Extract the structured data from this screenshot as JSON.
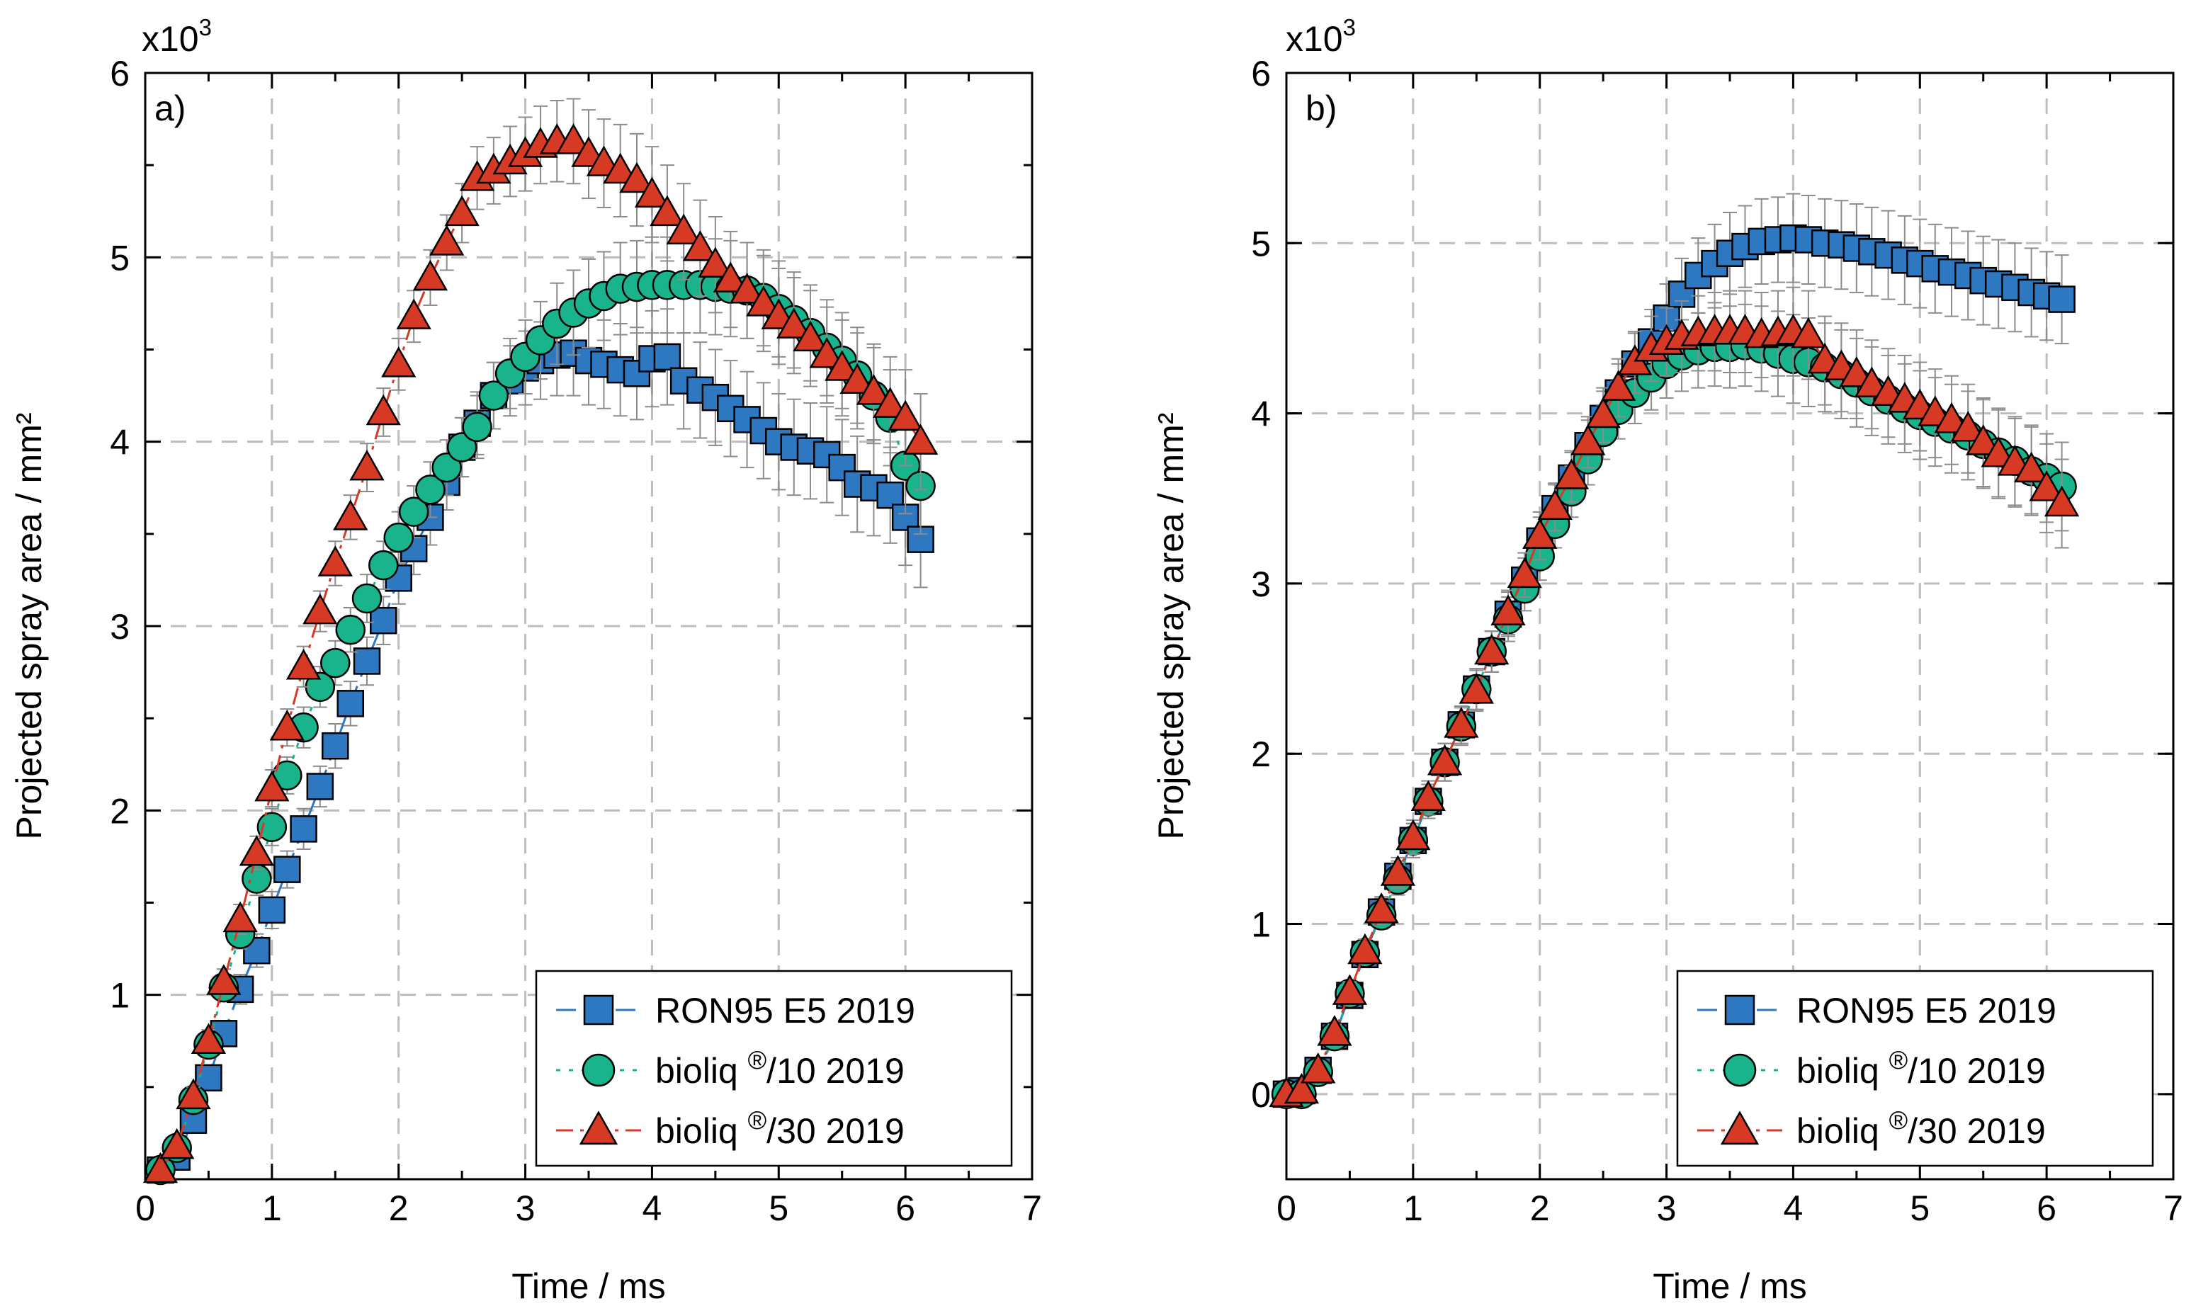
{
  "colors": {
    "ron95": "#2e78c2",
    "bioliq10": "#19b38c",
    "bioliq30": "#d63a24",
    "grid": "#bdbdbd",
    "errbar": "#8c8c8c"
  },
  "legend": {
    "entries": [
      {
        "key": "ron95",
        "label": "RON95 E5 2019"
      },
      {
        "key": "bioliq10",
        "base": "bioliq",
        "sup": "®",
        "rest": "/10 2019"
      },
      {
        "key": "bioliq30",
        "base": "bioliq",
        "sup": "®",
        "rest": "/30 2019"
      }
    ]
  },
  "chart_data": [
    {
      "type": "scatter",
      "panel_label": "a)",
      "multiplier_base": "x10",
      "multiplier_exp": "3",
      "xlabel": "Time / ms",
      "ylabel": "Projected spray area / mm²",
      "xlim": [
        0,
        7
      ],
      "ylim": [
        0,
        6
      ],
      "xticks": [
        0,
        1,
        2,
        3,
        4,
        5,
        6,
        7
      ],
      "yticks": [
        1,
        2,
        3,
        4,
        5,
        6
      ],
      "grid": true,
      "legend_position": "bottom-right",
      "series": [
        {
          "key": "ron95",
          "name": "RON95 E5 2019",
          "marker": "square",
          "line": "dashed",
          "x": [
            0.12,
            0.25,
            0.38,
            0.5,
            0.62,
            0.75,
            0.88,
            1.0,
            1.12,
            1.25,
            1.38,
            1.5,
            1.62,
            1.75,
            1.88,
            2.0,
            2.12,
            2.25,
            2.38,
            2.5,
            2.62,
            2.75,
            2.88,
            3.0,
            3.12,
            3.25,
            3.38,
            3.5,
            3.62,
            3.75,
            3.88,
            4.0,
            4.12,
            4.25,
            4.38,
            4.5,
            4.62,
            4.75,
            4.88,
            5.0,
            5.12,
            5.25,
            5.38,
            5.5,
            5.62,
            5.75,
            5.88,
            6.0,
            6.12
          ],
          "y": [
            0.05,
            0.12,
            0.32,
            0.55,
            0.79,
            1.03,
            1.24,
            1.46,
            1.68,
            1.9,
            2.13,
            2.35,
            2.58,
            2.81,
            3.03,
            3.26,
            3.42,
            3.59,
            3.78,
            3.97,
            4.1,
            4.25,
            4.33,
            4.4,
            4.44,
            4.47,
            4.48,
            4.44,
            4.42,
            4.39,
            4.37,
            4.45,
            4.46,
            4.33,
            4.28,
            4.24,
            4.18,
            4.12,
            4.06,
            4.0,
            3.97,
            3.95,
            3.93,
            3.86,
            3.77,
            3.75,
            3.71,
            3.59,
            3.47
          ],
          "err": [
            0.02,
            0.04,
            0.05,
            0.06,
            0.07,
            0.08,
            0.09,
            0.1,
            0.1,
            0.11,
            0.11,
            0.12,
            0.12,
            0.13,
            0.13,
            0.14,
            0.14,
            0.15,
            0.15,
            0.16,
            0.17,
            0.18,
            0.19,
            0.2,
            0.21,
            0.22,
            0.23,
            0.24,
            0.24,
            0.25,
            0.25,
            0.26,
            0.26,
            0.26,
            0.26,
            0.26,
            0.26,
            0.26,
            0.26,
            0.26,
            0.26,
            0.26,
            0.26,
            0.26,
            0.26,
            0.26,
            0.26,
            0.26,
            0.26
          ]
        },
        {
          "key": "bioliq10",
          "name": "bioliq®/10 2019",
          "marker": "circle",
          "line": "dotted",
          "x": [
            0.12,
            0.25,
            0.38,
            0.5,
            0.62,
            0.75,
            0.88,
            1.0,
            1.12,
            1.25,
            1.38,
            1.5,
            1.62,
            1.75,
            1.88,
            2.0,
            2.12,
            2.25,
            2.38,
            2.5,
            2.62,
            2.75,
            2.88,
            3.0,
            3.12,
            3.25,
            3.38,
            3.5,
            3.62,
            3.75,
            3.88,
            4.0,
            4.12,
            4.25,
            4.38,
            4.5,
            4.62,
            4.75,
            4.88,
            5.0,
            5.12,
            5.25,
            5.38,
            5.5,
            5.62,
            5.75,
            5.88,
            6.0,
            6.12
          ],
          "y": [
            0.05,
            0.17,
            0.43,
            0.73,
            1.04,
            1.33,
            1.63,
            1.91,
            2.19,
            2.45,
            2.67,
            2.8,
            2.98,
            3.15,
            3.33,
            3.48,
            3.62,
            3.74,
            3.86,
            3.97,
            4.08,
            4.25,
            4.37,
            4.46,
            4.55,
            4.64,
            4.7,
            4.75,
            4.79,
            4.83,
            4.84,
            4.85,
            4.85,
            4.85,
            4.85,
            4.84,
            4.83,
            4.82,
            4.78,
            4.72,
            4.66,
            4.59,
            4.51,
            4.44,
            4.36,
            4.25,
            4.13,
            3.87,
            3.76
          ],
          "err": [
            0.02,
            0.04,
            0.05,
            0.06,
            0.07,
            0.08,
            0.09,
            0.1,
            0.1,
            0.11,
            0.11,
            0.12,
            0.12,
            0.13,
            0.13,
            0.14,
            0.14,
            0.15,
            0.15,
            0.16,
            0.17,
            0.18,
            0.19,
            0.2,
            0.21,
            0.22,
            0.23,
            0.24,
            0.24,
            0.25,
            0.25,
            0.26,
            0.26,
            0.26,
            0.26,
            0.26,
            0.26,
            0.26,
            0.26,
            0.26,
            0.26,
            0.26,
            0.26,
            0.26,
            0.26,
            0.26,
            0.26,
            0.26,
            0.26
          ]
        },
        {
          "key": "bioliq30",
          "name": "bioliq®/30 2019",
          "marker": "triangle",
          "line": "dashdot",
          "x": [
            0.12,
            0.25,
            0.38,
            0.5,
            0.62,
            0.75,
            0.88,
            1.0,
            1.12,
            1.25,
            1.38,
            1.5,
            1.62,
            1.75,
            1.88,
            2.0,
            2.12,
            2.25,
            2.38,
            2.5,
            2.62,
            2.75,
            2.88,
            3.0,
            3.12,
            3.25,
            3.38,
            3.5,
            3.62,
            3.75,
            3.88,
            4.0,
            4.12,
            4.25,
            4.38,
            4.5,
            4.62,
            4.75,
            4.88,
            5.0,
            5.12,
            5.25,
            5.38,
            5.5,
            5.62,
            5.75,
            5.88,
            6.0,
            6.12
          ],
          "y": [
            0.05,
            0.18,
            0.45,
            0.75,
            1.07,
            1.41,
            1.77,
            2.12,
            2.45,
            2.78,
            3.08,
            3.34,
            3.59,
            3.86,
            4.16,
            4.42,
            4.68,
            4.89,
            5.08,
            5.24,
            5.43,
            5.47,
            5.52,
            5.56,
            5.61,
            5.63,
            5.63,
            5.56,
            5.51,
            5.47,
            5.42,
            5.34,
            5.24,
            5.14,
            5.05,
            4.96,
            4.88,
            4.82,
            4.75,
            4.68,
            4.63,
            4.56,
            4.47,
            4.4,
            4.33,
            4.27,
            4.2,
            4.13,
            4.0
          ],
          "err": [
            0.02,
            0.04,
            0.05,
            0.06,
            0.07,
            0.08,
            0.09,
            0.1,
            0.1,
            0.11,
            0.11,
            0.12,
            0.12,
            0.13,
            0.13,
            0.14,
            0.14,
            0.15,
            0.15,
            0.16,
            0.17,
            0.18,
            0.19,
            0.2,
            0.21,
            0.22,
            0.23,
            0.24,
            0.24,
            0.25,
            0.25,
            0.26,
            0.26,
            0.26,
            0.26,
            0.26,
            0.26,
            0.26,
            0.26,
            0.26,
            0.26,
            0.26,
            0.26,
            0.26,
            0.26,
            0.26,
            0.26,
            0.26,
            0.26
          ]
        }
      ]
    },
    {
      "type": "scatter",
      "panel_label": "b)",
      "multiplier_base": "x10",
      "multiplier_exp": "3",
      "xlabel": "Time / ms",
      "ylabel": "Projected spray area / mm²",
      "xlim": [
        0,
        7
      ],
      "ylim": [
        -0.5,
        6
      ],
      "xticks": [
        0,
        1,
        2,
        3,
        4,
        5,
        6,
        7
      ],
      "yticks": [
        0,
        1,
        2,
        3,
        4,
        5,
        6
      ],
      "grid": true,
      "legend_position": "bottom-right",
      "series": [
        {
          "key": "ron95",
          "name": "RON95 E5 2019",
          "marker": "square",
          "line": "dashed",
          "x": [
            0.0,
            0.12,
            0.25,
            0.38,
            0.5,
            0.62,
            0.75,
            0.88,
            1.0,
            1.12,
            1.25,
            1.38,
            1.5,
            1.62,
            1.75,
            1.88,
            2.0,
            2.12,
            2.25,
            2.38,
            2.5,
            2.62,
            2.75,
            2.88,
            3.0,
            3.12,
            3.25,
            3.38,
            3.5,
            3.62,
            3.75,
            3.88,
            4.0,
            4.12,
            4.25,
            4.38,
            4.5,
            4.62,
            4.75,
            4.88,
            5.0,
            5.12,
            5.25,
            5.38,
            5.5,
            5.62,
            5.75,
            5.88,
            6.0,
            6.12
          ],
          "y": [
            0.0,
            0.02,
            0.14,
            0.34,
            0.58,
            0.82,
            1.07,
            1.28,
            1.49,
            1.72,
            1.95,
            2.17,
            2.38,
            2.6,
            2.82,
            3.02,
            3.25,
            3.44,
            3.62,
            3.81,
            3.97,
            4.12,
            4.29,
            4.42,
            4.56,
            4.7,
            4.81,
            4.88,
            4.94,
            4.98,
            5.01,
            5.02,
            5.03,
            5.02,
            5.0,
            4.99,
            4.97,
            4.95,
            4.93,
            4.9,
            4.88,
            4.85,
            4.83,
            4.81,
            4.78,
            4.76,
            4.74,
            4.71,
            4.69,
            4.67
          ],
          "err": [
            0.02,
            0.02,
            0.04,
            0.05,
            0.06,
            0.07,
            0.08,
            0.09,
            0.1,
            0.1,
            0.11,
            0.11,
            0.12,
            0.12,
            0.13,
            0.13,
            0.14,
            0.14,
            0.15,
            0.15,
            0.16,
            0.17,
            0.18,
            0.19,
            0.2,
            0.21,
            0.22,
            0.23,
            0.24,
            0.24,
            0.25,
            0.25,
            0.26,
            0.26,
            0.26,
            0.26,
            0.26,
            0.26,
            0.26,
            0.26,
            0.26,
            0.26,
            0.26,
            0.26,
            0.26,
            0.26,
            0.26,
            0.26,
            0.26,
            0.26
          ]
        },
        {
          "key": "bioliq10",
          "name": "bioliq®/10 2019",
          "marker": "circle",
          "line": "dotted",
          "x": [
            0.0,
            0.12,
            0.25,
            0.38,
            0.5,
            0.62,
            0.75,
            0.88,
            1.0,
            1.12,
            1.25,
            1.38,
            1.5,
            1.62,
            1.75,
            1.88,
            2.0,
            2.12,
            2.25,
            2.38,
            2.5,
            2.62,
            2.75,
            2.88,
            3.0,
            3.12,
            3.25,
            3.38,
            3.5,
            3.62,
            3.75,
            3.88,
            4.0,
            4.12,
            4.25,
            4.38,
            4.5,
            4.62,
            4.75,
            4.88,
            5.0,
            5.12,
            5.25,
            5.38,
            5.5,
            5.62,
            5.75,
            5.88,
            6.0,
            6.12
          ],
          "y": [
            0.0,
            0.0,
            0.13,
            0.34,
            0.59,
            0.83,
            1.05,
            1.26,
            1.49,
            1.72,
            1.95,
            2.16,
            2.38,
            2.6,
            2.79,
            2.97,
            3.16,
            3.35,
            3.54,
            3.73,
            3.89,
            4.02,
            4.12,
            4.21,
            4.29,
            4.34,
            4.37,
            4.39,
            4.39,
            4.4,
            4.38,
            4.35,
            4.32,
            4.3,
            4.27,
            4.23,
            4.18,
            4.13,
            4.08,
            4.03,
            3.99,
            3.95,
            3.91,
            3.87,
            3.82,
            3.77,
            3.72,
            3.66,
            3.62,
            3.57
          ],
          "err": [
            0.02,
            0.02,
            0.04,
            0.05,
            0.06,
            0.07,
            0.08,
            0.09,
            0.1,
            0.1,
            0.11,
            0.11,
            0.12,
            0.12,
            0.13,
            0.13,
            0.14,
            0.14,
            0.15,
            0.15,
            0.16,
            0.17,
            0.18,
            0.19,
            0.2,
            0.21,
            0.22,
            0.23,
            0.24,
            0.24,
            0.25,
            0.25,
            0.26,
            0.26,
            0.26,
            0.26,
            0.26,
            0.26,
            0.26,
            0.26,
            0.26,
            0.26,
            0.26,
            0.26,
            0.26,
            0.26,
            0.26,
            0.26,
            0.26,
            0.26
          ]
        },
        {
          "key": "bioliq30",
          "name": "bioliq®/30 2019",
          "marker": "triangle",
          "line": "dashdot",
          "x": [
            0.0,
            0.12,
            0.25,
            0.38,
            0.5,
            0.62,
            0.75,
            0.88,
            1.0,
            1.12,
            1.25,
            1.38,
            1.5,
            1.62,
            1.75,
            1.88,
            2.0,
            2.12,
            2.25,
            2.38,
            2.5,
            2.62,
            2.75,
            2.88,
            3.0,
            3.12,
            3.25,
            3.38,
            3.5,
            3.62,
            3.75,
            3.88,
            4.0,
            4.12,
            4.25,
            4.38,
            4.5,
            4.62,
            4.75,
            4.88,
            5.0,
            5.12,
            5.25,
            5.38,
            5.5,
            5.62,
            5.75,
            5.88,
            6.0,
            6.12
          ],
          "y": [
            0.0,
            0.02,
            0.14,
            0.36,
            0.6,
            0.84,
            1.08,
            1.3,
            1.51,
            1.74,
            1.95,
            2.17,
            2.37,
            2.6,
            2.83,
            3.05,
            3.28,
            3.45,
            3.63,
            3.83,
            3.99,
            4.15,
            4.3,
            4.38,
            4.42,
            4.45,
            4.47,
            4.48,
            4.48,
            4.48,
            4.46,
            4.47,
            4.48,
            4.46,
            4.31,
            4.27,
            4.23,
            4.17,
            4.12,
            4.08,
            4.04,
            4.0,
            3.96,
            3.91,
            3.83,
            3.76,
            3.71,
            3.67,
            3.56,
            3.47
          ],
          "err": [
            0.02,
            0.02,
            0.04,
            0.05,
            0.06,
            0.07,
            0.08,
            0.09,
            0.1,
            0.1,
            0.11,
            0.11,
            0.12,
            0.12,
            0.13,
            0.13,
            0.14,
            0.14,
            0.15,
            0.15,
            0.16,
            0.17,
            0.18,
            0.19,
            0.2,
            0.21,
            0.22,
            0.23,
            0.24,
            0.24,
            0.25,
            0.25,
            0.26,
            0.26,
            0.26,
            0.26,
            0.26,
            0.26,
            0.26,
            0.26,
            0.26,
            0.26,
            0.26,
            0.26,
            0.26,
            0.26,
            0.26,
            0.26,
            0.26,
            0.26
          ]
        }
      ]
    }
  ]
}
